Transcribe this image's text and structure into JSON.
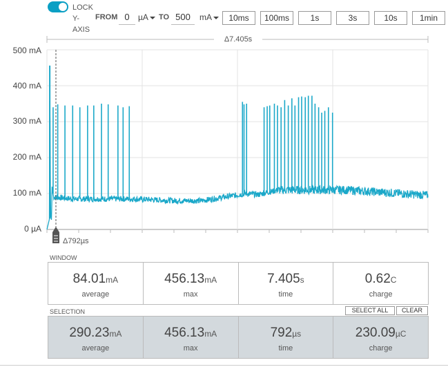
{
  "toolbar": {
    "lock_toggle_on": true,
    "lock_label_1": "LOCK",
    "lock_label_2": "Y-",
    "lock_label_3": "AXIS",
    "from_label": "FROM",
    "from_value": "0",
    "from_unit": "µA",
    "to_label": "TO",
    "to_value": "500",
    "to_unit": "mA",
    "windows": [
      "10ms",
      "100ms",
      "1s",
      "3s",
      "10s",
      "1min"
    ]
  },
  "chart": {
    "window_delta": "Δ7.405s",
    "selection_delta": "Δ792µs",
    "y_ticks": [
      "500 mA",
      "400 mA",
      "300 mA",
      "200 mA",
      "100 mA",
      "0 µA"
    ],
    "line_color": "#1ba8c9"
  },
  "chart_data": {
    "type": "line",
    "title": "",
    "xlabel": "",
    "ylabel": "",
    "ylim": [
      0,
      500
    ],
    "x_unit": "s",
    "y_unit": "mA",
    "xlim": [
      0,
      7.405
    ],
    "grid": true,
    "series": [
      {
        "values_desc": "current trace",
        "x": [
          0,
          0.05,
          0.055,
          0.07,
          0.09,
          0.1,
          0.13,
          0.5,
          1.7,
          2.5,
          3.0,
          3.8,
          3.85,
          4.1,
          4.5,
          5.8,
          7.405
        ],
        "y": [
          0,
          30,
          456,
          40,
          25,
          120,
          90,
          85,
          85,
          80,
          80,
          98,
          100,
          97,
          110,
          110,
          95
        ]
      }
    ],
    "spikes_left": {
      "x": [
        0.12,
        0.21,
        0.35,
        0.5,
        0.64,
        0.79,
        0.91,
        1.06,
        1.19,
        1.38,
        1.48,
        1.6
      ],
      "y": [
        340,
        348,
        345,
        345,
        340,
        345,
        345,
        350,
        348,
        345,
        340,
        343
      ]
    },
    "spikes_right": {
      "x": [
        3.8,
        3.83,
        3.88,
        4.22,
        4.28,
        4.33,
        4.42,
        4.48,
        4.55,
        4.62,
        4.69,
        4.76,
        4.82,
        4.89,
        4.95,
        5.02,
        5.08,
        5.15,
        5.21,
        5.28,
        5.34,
        5.4,
        5.47,
        5.55
      ],
      "y": [
        355,
        348,
        350,
        340,
        343,
        345,
        350,
        345,
        340,
        360,
        345,
        365,
        345,
        368,
        370,
        368,
        372,
        372,
        350,
        340,
        325,
        330,
        340,
        325
      ]
    }
  },
  "window": {
    "title": "WINDOW",
    "stats": [
      {
        "value": "84.01",
        "unit": "mA",
        "label": "average"
      },
      {
        "value": "456.13",
        "unit": "mA",
        "label": "max"
      },
      {
        "value": "7.405",
        "unit": "s",
        "label": "time"
      },
      {
        "value": "0.62",
        "unit": "C",
        "label": "charge"
      }
    ]
  },
  "selection": {
    "title": "SELECTION",
    "select_all": "SELECT ALL",
    "clear": "CLEAR",
    "stats": [
      {
        "value": "290.23",
        "unit": "mA",
        "label": "average"
      },
      {
        "value": "456.13",
        "unit": "mA",
        "label": "max"
      },
      {
        "value": "792",
        "unit": "µs",
        "label": "time"
      },
      {
        "value": "230.09",
        "unit": "µC",
        "label": "charge"
      }
    ]
  }
}
